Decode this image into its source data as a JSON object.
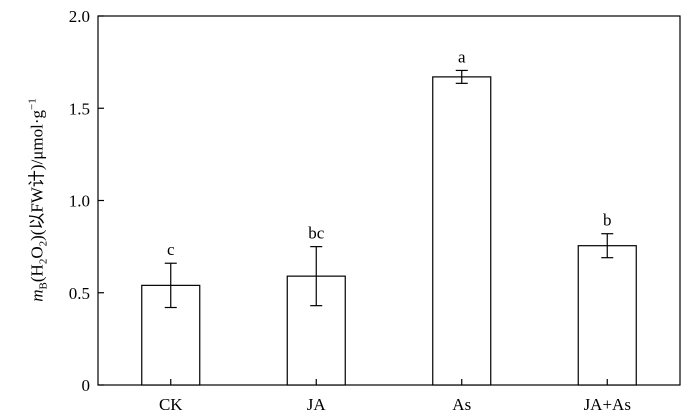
{
  "chart_data": {
    "type": "bar",
    "categories": [
      "CK",
      "JA",
      "As",
      "JA+As"
    ],
    "values": [
      0.54,
      0.59,
      1.67,
      0.755
    ],
    "errors": [
      0.12,
      0.16,
      0.035,
      0.065
    ],
    "significance_labels": [
      "c",
      "bc",
      "a",
      "b"
    ],
    "ylim": [
      0,
      2.0
    ],
    "yticks": [
      0,
      0.5,
      1.0,
      1.5,
      2.0
    ],
    "ytick_labels": [
      "0",
      "0.5",
      "1.0",
      "1.5",
      "2.0"
    ],
    "ylabel": {
      "m": "m",
      "m_sub": "B",
      "open": "(H",
      "h_sub": "2",
      "o": "O",
      "o_sub": "2",
      "rest": ")(以FW计)/μmol·g",
      "sup": "−1"
    },
    "xlabel": "",
    "title": "",
    "grid": false,
    "bar_fill": "#ffffff",
    "bar_stroke": "#000000"
  }
}
